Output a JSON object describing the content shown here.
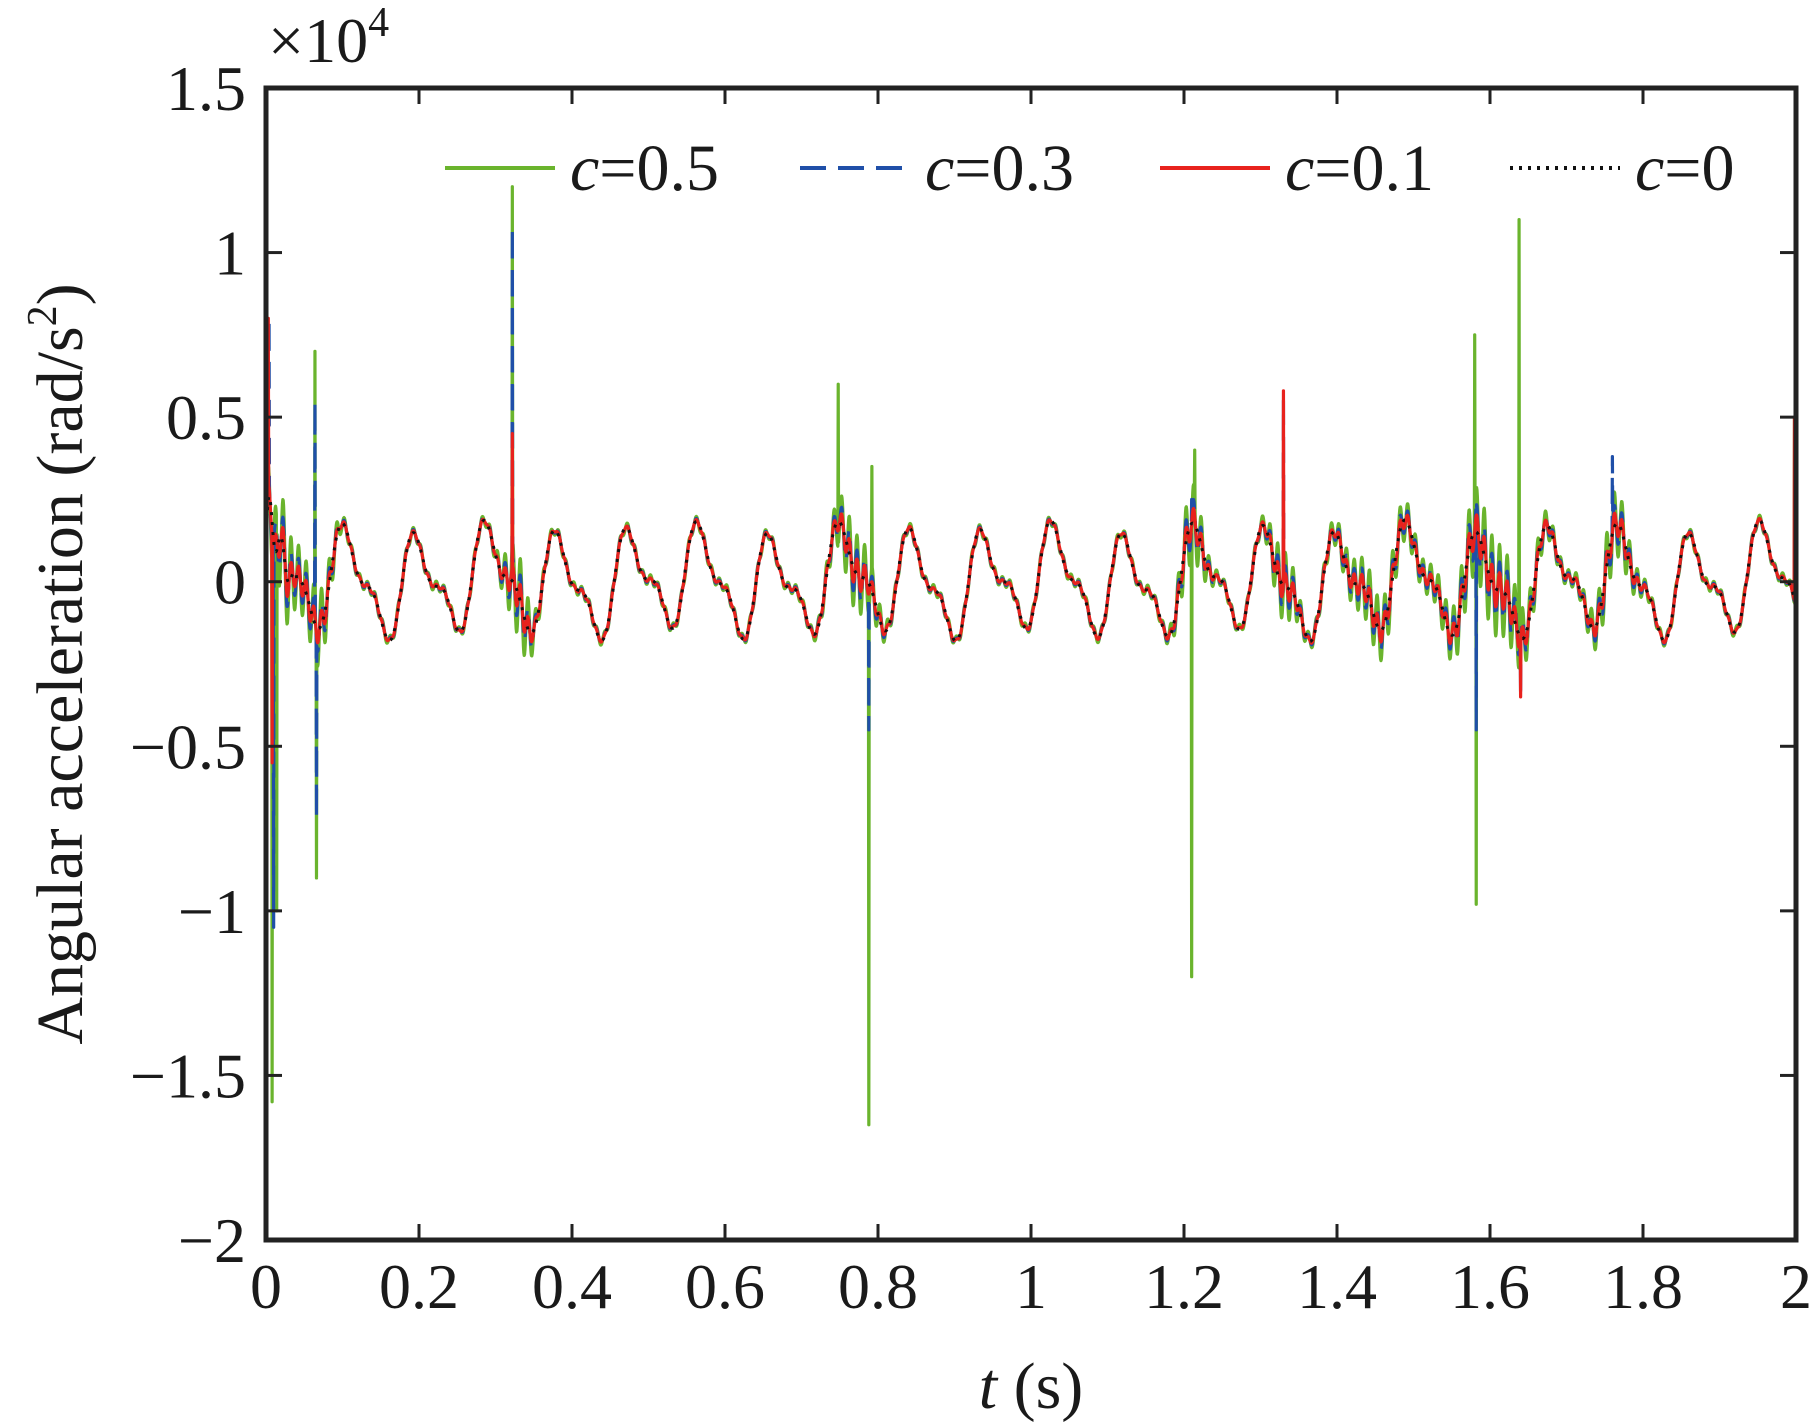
{
  "chart_data": {
    "type": "line",
    "xlabel": {
      "var": "t",
      "unit": " (s)"
    },
    "ylabel": {
      "main": "Angular acceleration (rad/s",
      "sup": "2",
      "close": ")"
    },
    "y_multiplier": {
      "base": "×10",
      "exp": "4"
    },
    "xlim": [
      0,
      2
    ],
    "ylim": [
      -2,
      1.5
    ],
    "x_ticks": [
      0,
      0.2,
      0.4,
      0.6,
      0.8,
      1,
      1.2,
      1.4,
      1.6,
      1.8,
      2
    ],
    "x_tick_labels": [
      "0",
      "0.2",
      "0.4",
      "0.6",
      "0.8",
      "1",
      "1.2",
      "1.4",
      "1.6",
      "1.8",
      "2"
    ],
    "y_ticks": [
      -2,
      -1.5,
      -1,
      -0.5,
      0,
      0.5,
      1,
      1.5
    ],
    "y_tick_labels": [
      "−2",
      "−1.5",
      "−1",
      "−0.5",
      "0",
      "0.5",
      "1",
      "1.5"
    ],
    "grid": false,
    "legend_position": "top-right",
    "series": [
      {
        "name_var": "c",
        "name_val": "=0.5",
        "color": "#6ab42d",
        "dash": "solid",
        "noise": 0.13,
        "spikes": [
          [
            0.002,
            0.78
          ],
          [
            0.008,
            -1.58
          ],
          [
            0.014,
            -1.0
          ],
          [
            0.064,
            0.7
          ],
          [
            0.066,
            -0.9
          ],
          [
            0.322,
            1.2
          ],
          [
            0.326,
            -0.1
          ],
          [
            0.748,
            0.6
          ],
          [
            0.788,
            -1.65
          ],
          [
            0.792,
            0.35
          ],
          [
            1.21,
            -1.2
          ],
          [
            1.214,
            0.4
          ],
          [
            1.58,
            0.75
          ],
          [
            1.582,
            -0.98
          ],
          [
            1.638,
            1.1
          ],
          [
            1.64,
            -0.25
          ],
          [
            1.998,
            0.5
          ]
        ]
      },
      {
        "name_var": "c",
        "name_val": "=0.3",
        "color": "#1f4fa8",
        "dash": "dashed",
        "noise": 0.08,
        "spikes": [
          [
            0.004,
            0.8
          ],
          [
            0.01,
            -1.05
          ],
          [
            0.064,
            0.55
          ],
          [
            0.066,
            -0.72
          ],
          [
            0.322,
            1.08
          ],
          [
            0.788,
            -0.45
          ],
          [
            1.21,
            0.25
          ],
          [
            1.33,
            0.55
          ],
          [
            1.582,
            -0.45
          ],
          [
            1.64,
            0.7
          ],
          [
            1.64,
            -0.35
          ],
          [
            1.76,
            0.38
          ]
        ]
      },
      {
        "name_var": "c",
        "name_val": "=0.1",
        "color": "#e8221d",
        "dash": "solid",
        "noise": 0.05,
        "spikes": [
          [
            0.003,
            0.8
          ],
          [
            0.008,
            -0.55
          ],
          [
            0.322,
            0.45
          ],
          [
            1.33,
            0.58
          ],
          [
            1.64,
            -0.35
          ],
          [
            1.998,
            0.5
          ]
        ]
      },
      {
        "name_var": "c",
        "name_val": "=0",
        "color": "#111111",
        "dash": "dotted",
        "noise": 0.0,
        "spikes": []
      }
    ]
  }
}
